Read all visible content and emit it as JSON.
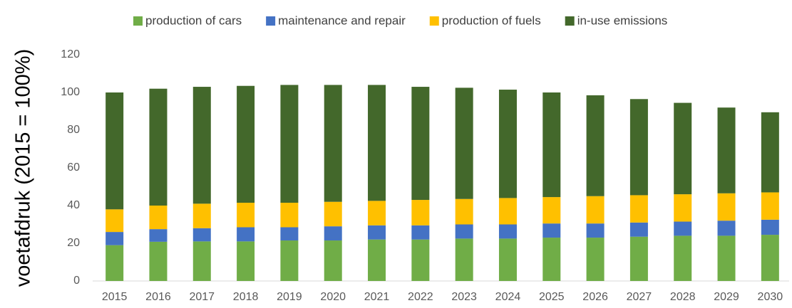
{
  "chart_data": {
    "type": "stacked_bar",
    "y_label": "voetafdruk (2015 = 100%)",
    "categories": [
      "2015",
      "2016",
      "2017",
      "2018",
      "2019",
      "2020",
      "2021",
      "2022",
      "2023",
      "2024",
      "2025",
      "2026",
      "2027",
      "2028",
      "2029",
      "2030"
    ],
    "series": [
      {
        "name": "production of cars",
        "color": "#70ad47",
        "values": [
          19,
          20.8,
          21,
          21,
          21.5,
          21.5,
          22,
          22,
          22.5,
          22.5,
          23,
          23,
          23.5,
          24,
          24,
          24.5
        ]
      },
      {
        "name": "maintenance and repair",
        "color": "#4472c4",
        "values": [
          7,
          6.7,
          7,
          7.5,
          7,
          7.5,
          7.5,
          7.5,
          7.5,
          7.5,
          7.5,
          7.5,
          7.5,
          7.5,
          8,
          8
        ]
      },
      {
        "name": "production of fuels",
        "color": "#ffc000",
        "values": [
          12,
          12.5,
          13,
          13,
          13,
          13,
          13,
          13.5,
          13.5,
          14,
          14,
          14.5,
          14.5,
          14.5,
          14.5,
          14.5
        ]
      },
      {
        "name": "in-use emissions",
        "color": "#43682b",
        "values": [
          62,
          62,
          62,
          62,
          62.5,
          62,
          61.5,
          60,
          59,
          57.5,
          55.5,
          53.5,
          51,
          48.5,
          45.5,
          42.5
        ]
      }
    ],
    "ylim": [
      0,
      120
    ],
    "yticks": [
      0,
      20,
      40,
      60,
      80,
      100,
      120
    ],
    "grid": false,
    "legend": "top"
  }
}
